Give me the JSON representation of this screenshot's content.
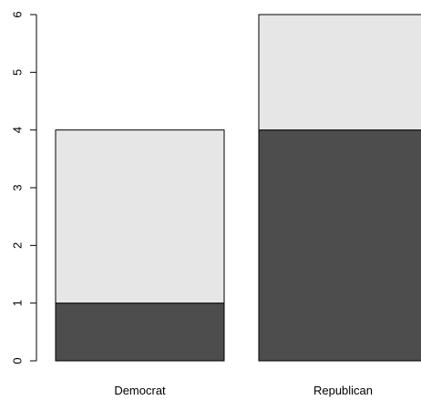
{
  "chart_data": {
    "type": "bar",
    "stacked": true,
    "title": "",
    "xlabel": "",
    "ylabel": "",
    "categories": [
      "Democrat",
      "Republican"
    ],
    "series": [
      {
        "values": [
          1,
          4
        ],
        "color": "#4d4d4d"
      },
      {
        "values": [
          3,
          2
        ],
        "color": "#e6e6e6"
      }
    ],
    "ylim": [
      0,
      6
    ],
    "yticks": [
      "0",
      "1",
      "2",
      "3",
      "4",
      "5",
      "6"
    ],
    "grid": false,
    "legend": "none"
  }
}
